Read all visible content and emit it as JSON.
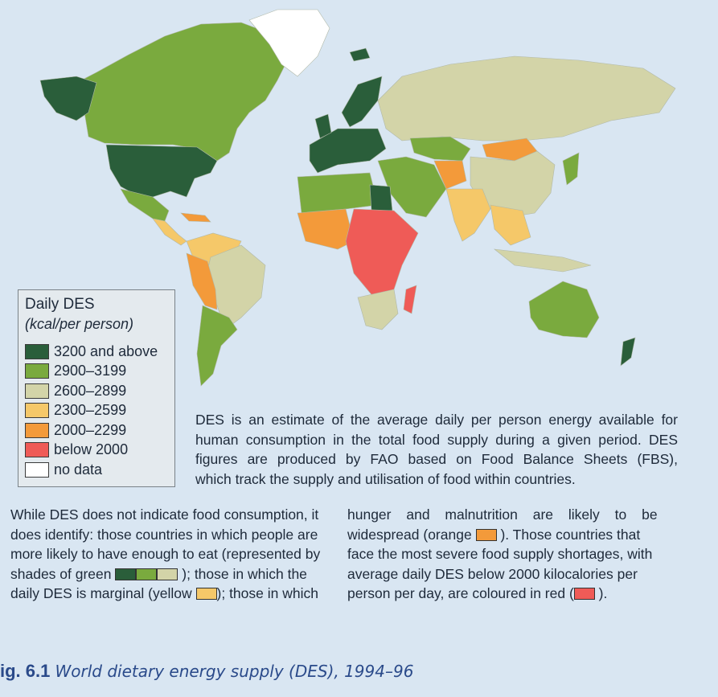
{
  "colors": {
    "ocean": "#d9e6f2",
    "c3200": "#2a5e3a",
    "c2900": "#7aaa3e",
    "c2600": "#d3d4a8",
    "c2300": "#f5c869",
    "c2000": "#f39a3a",
    "cbelow": "#ef5b57",
    "nodata": "#ffffff"
  },
  "legend": {
    "title": "Daily DES",
    "unit": "(kcal/per person)",
    "items": [
      {
        "label": "3200 and above",
        "color": "#2a5e3a"
      },
      {
        "label": "2900–3199",
        "color": "#7aaa3e"
      },
      {
        "label": "2600–2899",
        "color": "#d3d4a8"
      },
      {
        "label": "2300–2599",
        "color": "#f5c869"
      },
      {
        "label": "2000–2299",
        "color": "#f39a3a"
      },
      {
        "label": "below 2000",
        "color": "#ef5b57"
      },
      {
        "label": "no data",
        "color": "#ffffff"
      }
    ]
  },
  "description": {
    "l1": "DES is an estimate of the average daily per person energy available for",
    "l2": "human consumption in the total food supply during a given period. DES",
    "l3": "figures are produced by FAO based on Food Balance Sheets (FBS),",
    "l4": "which track the supply and utilisation of food within countries."
  },
  "body": {
    "c1l1": "While DES does not indicate food consumption, it",
    "c1l2": "does identify: those countries in which people are",
    "c1l3": "more likely to have enough to eat (represented by",
    "c1l4a": "shades of green",
    "c1l4b": "); those in which the",
    "c1l5a": "daily DES is marginal (yellow",
    "c1l5b": "); those in which",
    "c2l1": "hunger and malnutrition are likely to be",
    "c2l2a": "widespread (orange",
    "c2l2b": "). Those countries that",
    "c2l3": "face the most severe food supply shortages, with",
    "c2l4": "average daily DES below 2000 kilocalories per",
    "c2l5a": "person per day, are coloured in red (",
    "c2l5b": ")."
  },
  "caption": {
    "number": "ig. 6.1",
    "text": "World dietary energy supply (DES), 1994–96"
  }
}
